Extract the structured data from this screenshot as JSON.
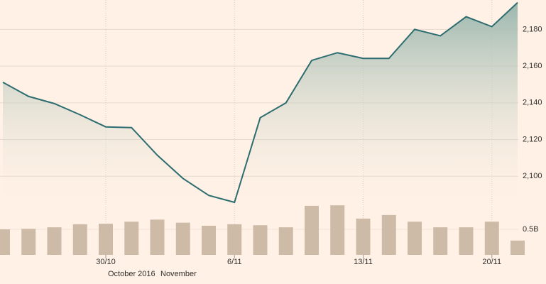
{
  "chart_data": {
    "type": "line",
    "categories": [
      null,
      null,
      null,
      null,
      "30/10",
      null,
      null,
      null,
      null,
      "6/11",
      null,
      null,
      null,
      null,
      "13/11",
      null,
      null,
      null,
      null,
      "20/11",
      null
    ],
    "series": [
      {
        "type": "line",
        "color": "#2d6d70",
        "values": [
          2151.2,
          2143.5,
          2139.6,
          2133.5,
          2126.9,
          2126.5,
          2111.5,
          2098.8,
          2089.6,
          2085.8,
          2131.9,
          2140,
          2163.1,
          2167.3,
          2164.2,
          2164.2,
          2180,
          2176.5,
          2186.9,
          2181.5,
          2194.6
        ]
      },
      {
        "type": "bar",
        "axis": "y2",
        "color": "#cdbba8",
        "values": [
          0.5,
          0.51,
          0.54,
          0.6,
          0.61,
          0.65,
          0.69,
          0.63,
          0.57,
          0.6,
          0.58,
          0.54,
          0.96,
          0.97,
          0.71,
          0.78,
          0.65,
          0.54,
          0.54,
          0.65,
          0.28
        ]
      }
    ],
    "ylim": [
      2080,
      2196
    ],
    "yticks": [
      {
        "value": 2100,
        "label": "2,100"
      },
      {
        "value": 2120,
        "label": "2,120"
      },
      {
        "value": 2140,
        "label": "2,140"
      },
      {
        "value": 2160,
        "label": "2,160"
      },
      {
        "value": 2180,
        "label": "2,180"
      }
    ],
    "y2lim": [
      0,
      1
    ],
    "y2ticks": [
      {
        "value": 0.5,
        "label": "0.5B"
      }
    ],
    "annotations": [
      "October 2016",
      "November"
    ],
    "grid": true
  }
}
